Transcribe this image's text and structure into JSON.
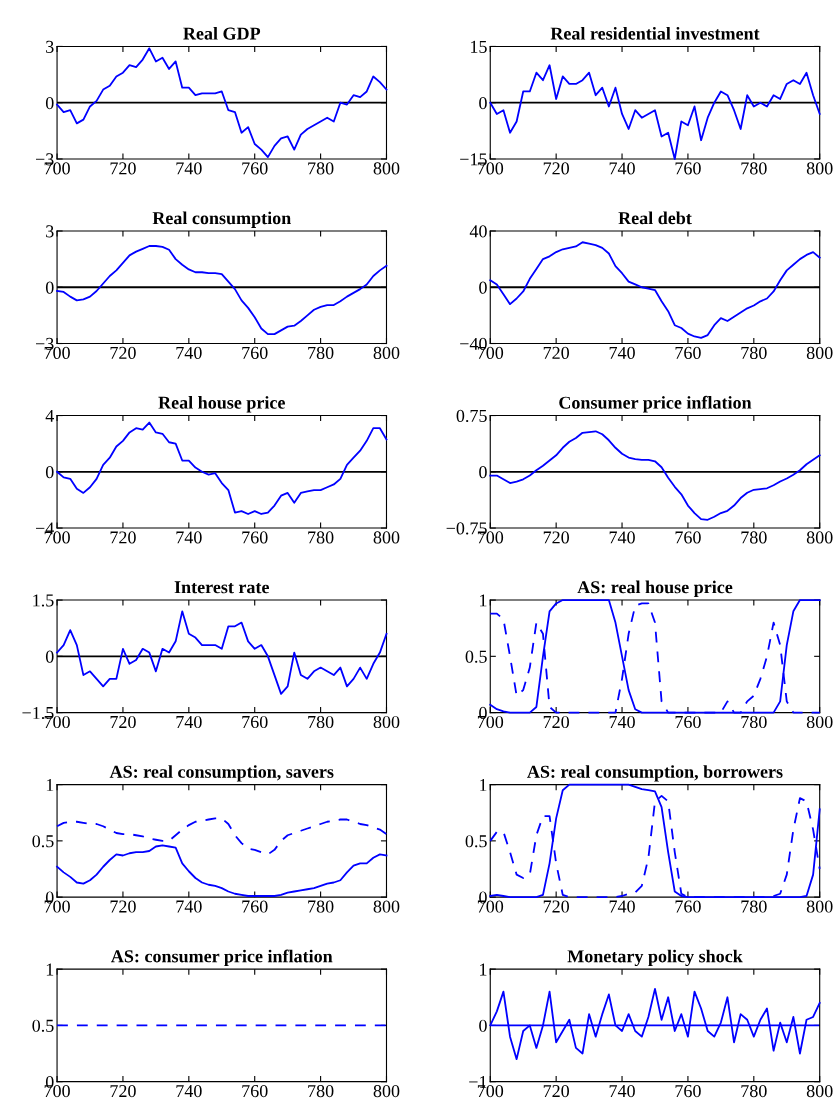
{
  "chart_data": [
    {
      "type": "line",
      "title": "Real GDP",
      "x": [
        700,
        702,
        704,
        706,
        708,
        710,
        712,
        714,
        716,
        718,
        720,
        722,
        724,
        726,
        728,
        730,
        732,
        734,
        736,
        738,
        740,
        742,
        744,
        746,
        748,
        750,
        752,
        754,
        756,
        758,
        760,
        762,
        764,
        766,
        768,
        770,
        772,
        774,
        776,
        778,
        780,
        782,
        784,
        786,
        788,
        790,
        792,
        794,
        796,
        798,
        800
      ],
      "series": [
        {
          "color": "#0000ff",
          "line_style": "solid",
          "values": [
            -0.1,
            -0.5,
            -0.4,
            -1.1,
            -0.9,
            -0.2,
            0.1,
            0.7,
            0.9,
            1.4,
            1.6,
            2.0,
            1.9,
            2.3,
            2.9,
            2.2,
            2.4,
            1.8,
            2.2,
            0.8,
            0.8,
            0.4,
            0.5,
            0.5,
            0.5,
            0.6,
            -0.4,
            -0.5,
            -1.6,
            -1.3,
            -2.2,
            -2.5,
            -2.9,
            -2.3,
            -1.9,
            -1.8,
            -2.5,
            -1.7,
            -1.4,
            -1.2,
            -1.0,
            -0.8,
            -1.0,
            0.0,
            -0.1,
            0.4,
            0.3,
            0.6,
            1.4,
            1.1,
            0.7
          ]
        }
      ],
      "xlim": [
        700,
        800
      ],
      "xticks": [
        700,
        720,
        740,
        760,
        780,
        800
      ],
      "ylim": [
        -3,
        3
      ],
      "yticks": [
        {
          "value": -3,
          "label": "−3"
        },
        0,
        3
      ],
      "ref_lines": [
        {
          "axis": "y",
          "value": 0,
          "color": "#000000"
        }
      ],
      "grid": false
    },
    {
      "type": "line",
      "title": "Real residential investment",
      "x": [
        700,
        702,
        704,
        706,
        708,
        710,
        712,
        714,
        716,
        718,
        720,
        722,
        724,
        726,
        728,
        730,
        732,
        734,
        736,
        738,
        740,
        742,
        744,
        746,
        748,
        750,
        752,
        754,
        756,
        758,
        760,
        762,
        764,
        766,
        768,
        770,
        772,
        774,
        776,
        778,
        780,
        782,
        784,
        786,
        788,
        790,
        792,
        794,
        796,
        798,
        800
      ],
      "series": [
        {
          "color": "#0000ff",
          "line_style": "solid",
          "values": [
            0,
            -3,
            -2,
            -8,
            -5,
            3,
            3,
            8,
            6,
            10,
            1,
            7,
            5,
            5,
            6,
            8,
            2,
            4,
            -1,
            4,
            -3,
            -7,
            -2,
            -4,
            -3,
            -2,
            -9,
            -8,
            -15,
            -5,
            -6,
            -1,
            -10,
            -4,
            0,
            3,
            2,
            -2,
            -7,
            2,
            -1,
            0,
            -1,
            2,
            1,
            5,
            6,
            5,
            8,
            2,
            -3
          ]
        }
      ],
      "xlim": [
        700,
        800
      ],
      "xticks": [
        700,
        720,
        740,
        760,
        780,
        800
      ],
      "ylim": [
        -15,
        15
      ],
      "yticks": [
        {
          "value": -15,
          "label": "−15"
        },
        0,
        15
      ],
      "ref_lines": [
        {
          "axis": "y",
          "value": 0,
          "color": "#000000"
        }
      ],
      "grid": false
    },
    {
      "type": "line",
      "title": "Real consumption",
      "x": [
        700,
        702,
        704,
        706,
        708,
        710,
        712,
        714,
        716,
        718,
        720,
        722,
        724,
        726,
        728,
        730,
        732,
        734,
        736,
        738,
        740,
        742,
        744,
        746,
        748,
        750,
        752,
        754,
        756,
        758,
        760,
        762,
        764,
        766,
        768,
        770,
        772,
        774,
        776,
        778,
        780,
        782,
        784,
        786,
        788,
        790,
        792,
        794,
        796,
        798,
        800
      ],
      "series": [
        {
          "color": "#0000ff",
          "line_style": "solid",
          "values": [
            -0.2,
            -0.25,
            -0.5,
            -0.7,
            -0.65,
            -0.5,
            -0.2,
            0.2,
            0.6,
            0.9,
            1.3,
            1.7,
            1.9,
            2.05,
            2.2,
            2.2,
            2.15,
            2.0,
            1.5,
            1.2,
            0.95,
            0.8,
            0.8,
            0.75,
            0.75,
            0.7,
            0.3,
            -0.1,
            -0.7,
            -1.1,
            -1.6,
            -2.2,
            -2.5,
            -2.5,
            -2.3,
            -2.1,
            -2.05,
            -1.8,
            -1.5,
            -1.2,
            -1.05,
            -0.95,
            -0.95,
            -0.75,
            -0.5,
            -0.3,
            -0.1,
            0.15,
            0.6,
            0.9,
            1.15
          ]
        }
      ],
      "xlim": [
        700,
        800
      ],
      "xticks": [
        700,
        720,
        740,
        760,
        780,
        800
      ],
      "ylim": [
        -3,
        3
      ],
      "yticks": [
        {
          "value": -3,
          "label": "−3"
        },
        0,
        3
      ],
      "ref_lines": [
        {
          "axis": "y",
          "value": 0,
          "color": "#000000"
        }
      ],
      "grid": false
    },
    {
      "type": "line",
      "title": "Real debt",
      "x": [
        700,
        702,
        704,
        706,
        708,
        710,
        712,
        714,
        716,
        718,
        720,
        722,
        724,
        726,
        728,
        730,
        732,
        734,
        736,
        738,
        740,
        742,
        744,
        746,
        748,
        750,
        752,
        754,
        756,
        758,
        760,
        762,
        764,
        766,
        768,
        770,
        772,
        774,
        776,
        778,
        780,
        782,
        784,
        786,
        788,
        790,
        792,
        794,
        796,
        798,
        800
      ],
      "series": [
        {
          "color": "#0000ff",
          "line_style": "solid",
          "values": [
            5,
            2,
            -5,
            -12,
            -8,
            -3,
            6,
            13,
            20,
            22,
            25,
            27,
            28,
            29,
            32,
            31,
            30,
            28,
            24,
            15,
            10,
            4,
            2,
            0,
            -1,
            -2,
            -10,
            -17,
            -27,
            -29,
            -33,
            -35,
            -36,
            -34,
            -27,
            -22,
            -24,
            -21,
            -18,
            -15,
            -13,
            -10,
            -8,
            -3,
            5,
            12,
            16,
            20,
            23,
            25,
            21
          ]
        }
      ],
      "xlim": [
        700,
        800
      ],
      "xticks": [
        700,
        720,
        740,
        760,
        780,
        800
      ],
      "ylim": [
        -40,
        40
      ],
      "yticks": [
        {
          "value": -40,
          "label": "−40"
        },
        0,
        40
      ],
      "ref_lines": [
        {
          "axis": "y",
          "value": 0,
          "color": "#000000"
        }
      ],
      "grid": false
    },
    {
      "type": "line",
      "title": "Real house price",
      "x": [
        700,
        702,
        704,
        706,
        708,
        710,
        712,
        714,
        716,
        718,
        720,
        722,
        724,
        726,
        728,
        730,
        732,
        734,
        736,
        738,
        740,
        742,
        744,
        746,
        748,
        750,
        752,
        754,
        756,
        758,
        760,
        762,
        764,
        766,
        768,
        770,
        772,
        774,
        776,
        778,
        780,
        782,
        784,
        786,
        788,
        790,
        792,
        794,
        796,
        798,
        800
      ],
      "series": [
        {
          "color": "#0000ff",
          "line_style": "solid",
          "values": [
            0,
            -0.4,
            -0.5,
            -1.2,
            -1.5,
            -1.1,
            -0.5,
            0.5,
            1.0,
            1.8,
            2.2,
            2.8,
            3.1,
            3.0,
            3.5,
            2.8,
            2.7,
            2.1,
            2.0,
            0.8,
            0.8,
            0.3,
            0.0,
            -0.2,
            -0.1,
            -0.8,
            -1.3,
            -2.9,
            -2.8,
            -3.0,
            -2.8,
            -3.0,
            -2.9,
            -2.4,
            -1.7,
            -1.5,
            -2.2,
            -1.5,
            -1.4,
            -1.3,
            -1.3,
            -1.1,
            -0.9,
            -0.5,
            0.5,
            1.0,
            1.5,
            2.2,
            3.1,
            3.1,
            2.3
          ]
        }
      ],
      "xlim": [
        700,
        800
      ],
      "xticks": [
        700,
        720,
        740,
        760,
        780,
        800
      ],
      "ylim": [
        -4,
        4
      ],
      "yticks": [
        {
          "value": -4,
          "label": "−4"
        },
        0,
        4
      ],
      "ref_lines": [
        {
          "axis": "y",
          "value": 0,
          "color": "#000000"
        }
      ],
      "grid": false
    },
    {
      "type": "line",
      "title": "Consumer price inflation",
      "x": [
        700,
        702,
        704,
        706,
        708,
        710,
        712,
        714,
        716,
        718,
        720,
        722,
        724,
        726,
        728,
        730,
        732,
        734,
        736,
        738,
        740,
        742,
        744,
        746,
        748,
        750,
        752,
        754,
        756,
        758,
        760,
        762,
        764,
        766,
        768,
        770,
        772,
        774,
        776,
        778,
        780,
        782,
        784,
        786,
        788,
        790,
        792,
        794,
        796,
        798,
        800
      ],
      "series": [
        {
          "color": "#0000ff",
          "line_style": "solid",
          "values": [
            -0.05,
            -0.05,
            -0.1,
            -0.15,
            -0.13,
            -0.1,
            -0.05,
            0.02,
            0.08,
            0.15,
            0.22,
            0.32,
            0.4,
            0.45,
            0.52,
            0.53,
            0.54,
            0.5,
            0.42,
            0.32,
            0.24,
            0.19,
            0.17,
            0.16,
            0.16,
            0.14,
            0.06,
            -0.08,
            -0.2,
            -0.3,
            -0.45,
            -0.55,
            -0.63,
            -0.64,
            -0.6,
            -0.55,
            -0.52,
            -0.45,
            -0.35,
            -0.28,
            -0.24,
            -0.23,
            -0.22,
            -0.18,
            -0.13,
            -0.09,
            -0.04,
            0.02,
            0.1,
            0.16,
            0.22
          ]
        }
      ],
      "xlim": [
        700,
        800
      ],
      "xticks": [
        700,
        720,
        740,
        760,
        780,
        800
      ],
      "ylim": [
        -0.75,
        0.75
      ],
      "yticks": [
        {
          "value": -0.75,
          "label": "−0.75"
        },
        0,
        0.75
      ],
      "ref_lines": [
        {
          "axis": "y",
          "value": 0,
          "color": "#000000"
        }
      ],
      "grid": false
    },
    {
      "type": "line",
      "title": "Interest rate",
      "x": [
        700,
        702,
        704,
        706,
        708,
        710,
        712,
        714,
        716,
        718,
        720,
        722,
        724,
        726,
        728,
        730,
        732,
        734,
        736,
        738,
        740,
        742,
        744,
        746,
        748,
        750,
        752,
        754,
        756,
        758,
        760,
        762,
        764,
        766,
        768,
        770,
        772,
        774,
        776,
        778,
        780,
        782,
        784,
        786,
        788,
        790,
        792,
        794,
        796,
        798,
        800
      ],
      "series": [
        {
          "color": "#0000ff",
          "line_style": "solid",
          "values": [
            0.1,
            0.3,
            0.7,
            0.3,
            -0.5,
            -0.4,
            -0.6,
            -0.8,
            -0.6,
            -0.6,
            0.2,
            -0.2,
            -0.1,
            0.2,
            0.1,
            -0.4,
            0.2,
            0.1,
            0.4,
            1.2,
            0.6,
            0.5,
            0.3,
            0.3,
            0.3,
            0.2,
            0.8,
            0.8,
            0.9,
            0.4,
            0.2,
            0.3,
            0.0,
            -0.5,
            -1.0,
            -0.8,
            0.1,
            -0.5,
            -0.6,
            -0.4,
            -0.3,
            -0.4,
            -0.5,
            -0.3,
            -0.8,
            -0.6,
            -0.3,
            -0.6,
            -0.2,
            0.1,
            0.6
          ]
        }
      ],
      "xlim": [
        700,
        800
      ],
      "xticks": [
        700,
        720,
        740,
        760,
        780,
        800
      ],
      "ylim": [
        -1.5,
        1.5
      ],
      "yticks": [
        {
          "value": -1.5,
          "label": "−1.5"
        },
        0,
        1.5
      ],
      "ref_lines": [
        {
          "axis": "y",
          "value": 0,
          "color": "#000000"
        }
      ],
      "grid": false
    },
    {
      "type": "line",
      "title": "AS: real house price",
      "x": [
        700,
        702,
        704,
        706,
        708,
        710,
        712,
        714,
        716,
        718,
        720,
        722,
        724,
        726,
        728,
        730,
        732,
        734,
        736,
        738,
        740,
        742,
        744,
        746,
        748,
        750,
        752,
        754,
        756,
        758,
        760,
        762,
        764,
        766,
        768,
        770,
        772,
        774,
        776,
        778,
        780,
        782,
        784,
        786,
        788,
        790,
        792,
        794,
        796,
        798,
        800
      ],
      "series": [
        {
          "color": "#0000ff",
          "line_style": "solid",
          "values": [
            0.07,
            0.03,
            0.01,
            0,
            0,
            0,
            0,
            0.05,
            0.5,
            0.9,
            0.97,
            1,
            1,
            1,
            1,
            1,
            1,
            1,
            1,
            0.8,
            0.5,
            0.2,
            0.03,
            0,
            0,
            0,
            0,
            0,
            0,
            0,
            0,
            0,
            0,
            0,
            0,
            0,
            0,
            0,
            0,
            0,
            0,
            0,
            0,
            0,
            0.1,
            0.6,
            0.9,
            1,
            1,
            1,
            1
          ]
        },
        {
          "color": "#0000ff",
          "line_style": "dashed",
          "values": [
            0.88,
            0.88,
            0.83,
            0.5,
            0.15,
            0.2,
            0.4,
            0.8,
            0.7,
            0.05,
            0,
            0,
            0,
            0,
            0,
            0,
            0,
            0,
            0,
            0,
            0.3,
            0.7,
            0.95,
            0.97,
            0.97,
            0.8,
            0.1,
            0,
            0,
            0,
            0,
            0,
            0,
            0,
            0,
            0,
            0.1,
            0,
            0,
            0.1,
            0.15,
            0.3,
            0.5,
            0.8,
            0.6,
            0.1,
            0,
            0,
            0,
            0,
            0
          ]
        }
      ],
      "xlim": [
        700,
        800
      ],
      "xticks": [
        700,
        720,
        740,
        760,
        780,
        800
      ],
      "ylim": [
        0,
        1
      ],
      "yticks": [
        0,
        0.5,
        1
      ],
      "grid": false
    },
    {
      "type": "line",
      "title": "AS: real consumption, savers",
      "x": [
        700,
        702,
        704,
        706,
        708,
        710,
        712,
        714,
        716,
        718,
        720,
        722,
        724,
        726,
        728,
        730,
        732,
        734,
        736,
        738,
        740,
        742,
        744,
        746,
        748,
        750,
        752,
        754,
        756,
        758,
        760,
        762,
        764,
        766,
        768,
        770,
        772,
        774,
        776,
        778,
        780,
        782,
        784,
        786,
        788,
        790,
        792,
        794,
        796,
        798,
        800
      ],
      "series": [
        {
          "color": "#0000ff",
          "line_style": "solid",
          "values": [
            0.27,
            0.22,
            0.18,
            0.13,
            0.12,
            0.15,
            0.2,
            0.27,
            0.33,
            0.38,
            0.37,
            0.39,
            0.4,
            0.4,
            0.41,
            0.45,
            0.46,
            0.45,
            0.44,
            0.3,
            0.23,
            0.17,
            0.13,
            0.11,
            0.1,
            0.08,
            0.05,
            0.03,
            0.02,
            0.01,
            0.01,
            0.01,
            0.01,
            0.01,
            0.02,
            0.04,
            0.05,
            0.06,
            0.07,
            0.08,
            0.1,
            0.12,
            0.13,
            0.15,
            0.22,
            0.28,
            0.3,
            0.3,
            0.35,
            0.38,
            0.37
          ]
        },
        {
          "color": "#0000ff",
          "line_style": "dashed",
          "values": [
            0.63,
            0.66,
            0.67,
            0.67,
            0.66,
            0.65,
            0.65,
            0.63,
            0.6,
            0.57,
            0.56,
            0.56,
            0.55,
            0.54,
            0.52,
            0.51,
            0.5,
            0.5,
            0.55,
            0.6,
            0.64,
            0.67,
            0.68,
            0.69,
            0.7,
            0.7,
            0.65,
            0.55,
            0.48,
            0.43,
            0.42,
            0.4,
            0.38,
            0.42,
            0.5,
            0.55,
            0.57,
            0.59,
            0.61,
            0.63,
            0.65,
            0.67,
            0.68,
            0.69,
            0.69,
            0.67,
            0.65,
            0.64,
            0.62,
            0.6,
            0.56
          ]
        }
      ],
      "xlim": [
        700,
        800
      ],
      "xticks": [
        700,
        720,
        740,
        760,
        780,
        800
      ],
      "ylim": [
        0,
        1
      ],
      "yticks": [
        0,
        0.5,
        1
      ],
      "grid": false
    },
    {
      "type": "line",
      "title": "AS: real consumption, borrowers",
      "x": [
        700,
        702,
        704,
        706,
        708,
        710,
        712,
        714,
        716,
        718,
        720,
        722,
        724,
        726,
        728,
        730,
        732,
        734,
        736,
        738,
        740,
        742,
        744,
        746,
        748,
        750,
        752,
        754,
        756,
        758,
        760,
        762,
        764,
        766,
        768,
        770,
        772,
        774,
        776,
        778,
        780,
        782,
        784,
        786,
        788,
        790,
        792,
        794,
        796,
        798,
        800
      ],
      "series": [
        {
          "color": "#0000ff",
          "line_style": "solid",
          "values": [
            0.01,
            0.02,
            0.01,
            0,
            0,
            0,
            0,
            0,
            0.02,
            0.3,
            0.7,
            0.95,
            1,
            1,
            1,
            1,
            1,
            1,
            1,
            1,
            1,
            1,
            0.98,
            0.96,
            0.95,
            0.94,
            0.8,
            0.4,
            0.05,
            0.01,
            0,
            0,
            0,
            0,
            0,
            0,
            0,
            0,
            0,
            0,
            0,
            0,
            0,
            0,
            0,
            0,
            0,
            0,
            0.01,
            0.2,
            0.78
          ]
        },
        {
          "color": "#0000ff",
          "line_style": "dashed",
          "values": [
            0.5,
            0.58,
            0.58,
            0.4,
            0.2,
            0.17,
            0.2,
            0.55,
            0.72,
            0.72,
            0.3,
            0.02,
            0,
            0,
            0,
            0,
            0,
            0,
            0,
            0,
            0.01,
            0.03,
            0.04,
            0.1,
            0.35,
            0.85,
            0.9,
            0.85,
            0.4,
            0.03,
            0,
            0,
            0,
            0,
            0,
            0,
            0,
            0,
            0,
            0,
            0,
            0,
            0,
            0.01,
            0.03,
            0.2,
            0.6,
            0.88,
            0.85,
            0.6,
            0.25
          ]
        }
      ],
      "xlim": [
        700,
        800
      ],
      "xticks": [
        700,
        720,
        740,
        760,
        780,
        800
      ],
      "ylim": [
        0,
        1
      ],
      "yticks": [
        0,
        0.5,
        1
      ],
      "grid": false
    },
    {
      "type": "line",
      "title": "AS: consumer price inflation",
      "series": [
        {
          "color": "#0000ff",
          "line_style": "dashed",
          "x": [
            700,
            800
          ],
          "values": [
            0.5,
            0.5
          ]
        }
      ],
      "xlim": [
        700,
        800
      ],
      "xticks": [
        700,
        720,
        740,
        760,
        780,
        800
      ],
      "ylim": [
        0,
        1
      ],
      "yticks": [
        0,
        0.5,
        1
      ],
      "grid": false
    },
    {
      "type": "line",
      "title": "Monetary policy shock",
      "x": [
        700,
        702,
        704,
        706,
        708,
        710,
        712,
        714,
        716,
        718,
        720,
        722,
        724,
        726,
        728,
        730,
        732,
        734,
        736,
        738,
        740,
        742,
        744,
        746,
        748,
        750,
        752,
        754,
        756,
        758,
        760,
        762,
        764,
        766,
        768,
        770,
        772,
        774,
        776,
        778,
        780,
        782,
        784,
        786,
        788,
        790,
        792,
        794,
        796,
        798,
        800
      ],
      "series": [
        {
          "color": "#0000ff",
          "line_style": "solid",
          "values": [
            0.0,
            0.25,
            0.6,
            -0.2,
            -0.6,
            -0.1,
            0.0,
            -0.4,
            0.0,
            0.6,
            -0.3,
            -0.1,
            0.1,
            -0.4,
            -0.5,
            0.2,
            -0.2,
            0.2,
            0.55,
            0.0,
            -0.1,
            0.2,
            -0.1,
            -0.2,
            0.15,
            0.65,
            0.1,
            0.5,
            -0.1,
            0.2,
            -0.2,
            0.6,
            0.3,
            -0.1,
            -0.2,
            0.05,
            0.5,
            -0.3,
            0.2,
            0.1,
            -0.2,
            0.1,
            0.3,
            -0.45,
            0.05,
            -0.3,
            0.15,
            -0.5,
            0.1,
            0.15,
            0.4
          ]
        }
      ],
      "xlim": [
        700,
        800
      ],
      "xticks": [
        700,
        720,
        740,
        760,
        780,
        800
      ],
      "ylim": [
        -1,
        1
      ],
      "yticks": [
        {
          "value": -1,
          "label": "−1"
        },
        0,
        1
      ],
      "ref_lines": [
        {
          "axis": "y",
          "value": 0,
          "color": "#0000ff"
        }
      ],
      "grid": false
    }
  ]
}
